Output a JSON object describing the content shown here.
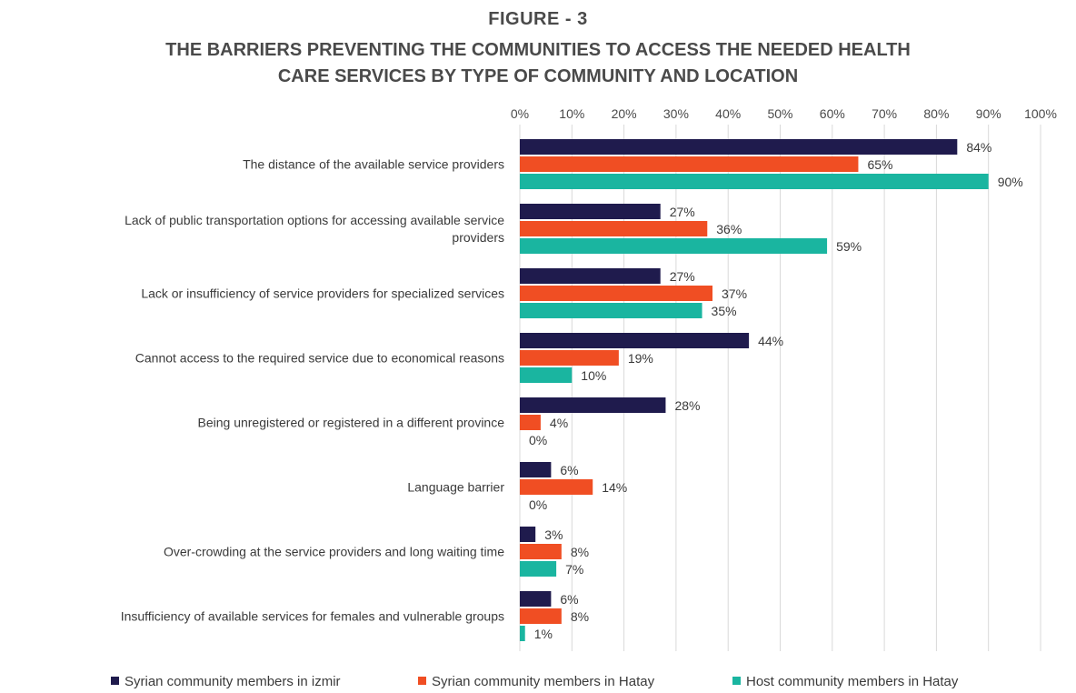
{
  "figure_label": "FIGURE - 3",
  "title_lines": [
    "THE BARRIERS PREVENTING THE COMMUNITIES TO ACCESS THE NEEDED HEALTH",
    "CARE SERVICES BY TYPE OF COMMUNITY AND LOCATION"
  ],
  "colors": {
    "izmir": "#1f1b4d",
    "hatay_syrian": "#f04e23",
    "hatay_host": "#1ab5a0",
    "grid": "#d9d9d9"
  },
  "chart_data": {
    "type": "bar",
    "orientation": "horizontal",
    "title": "THE BARRIERS PREVENTING THE COMMUNITIES TO ACCESS THE NEEDED HEALTH CARE SERVICES BY TYPE OF COMMUNITY AND LOCATION",
    "xlim": [
      0,
      100
    ],
    "x_ticks": [
      "0%",
      "10%",
      "20%",
      "30%",
      "40%",
      "50%",
      "60%",
      "70%",
      "80%",
      "90%",
      "100%"
    ],
    "x_axis_position": "top",
    "grid": true,
    "legend_position": "bottom",
    "categories": [
      [
        "The distance of the available service providers"
      ],
      [
        "Lack of public transportation options for accessing available service",
        "providers"
      ],
      [
        "Lack or insufficiency of service providers for specialized services"
      ],
      [
        "Cannot access to the required service due to economical reasons"
      ],
      [
        "Being unregistered or registered in a different province"
      ],
      [
        "Language barrier"
      ],
      [
        "Over-crowding at the service providers and long waiting time"
      ],
      [
        "Insufficiency of available services for females and vulnerable groups"
      ]
    ],
    "series": [
      {
        "name": "Syrian community members in izmir",
        "color": "#1f1b4d",
        "values": [
          84,
          27,
          27,
          44,
          28,
          6,
          3,
          6
        ]
      },
      {
        "name": "Syrian community members in Hatay",
        "color": "#f04e23",
        "values": [
          65,
          36,
          37,
          19,
          4,
          14,
          8,
          8
        ]
      },
      {
        "name": "Host community members in Hatay",
        "color": "#1ab5a0",
        "values": [
          90,
          59,
          35,
          10,
          0,
          0,
          7,
          1
        ]
      }
    ]
  }
}
